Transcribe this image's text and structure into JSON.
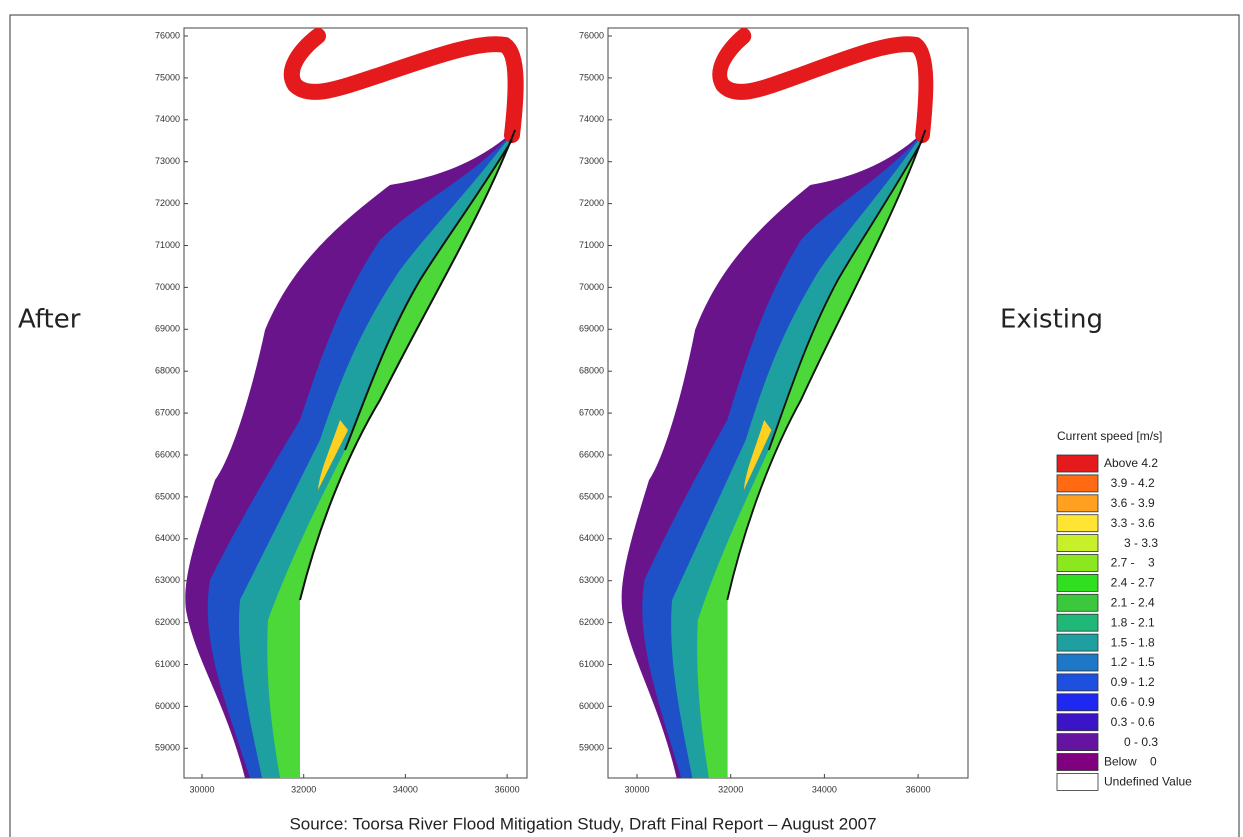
{
  "panels": [
    {
      "label": "After",
      "yticks": [
        "76000",
        "75000",
        "74000",
        "73000",
        "72000",
        "71000",
        "70000",
        "69000",
        "68000",
        "67000",
        "66000",
        "65000",
        "64000",
        "63000",
        "62000",
        "61000",
        "60000",
        "59000"
      ],
      "xticks": [
        "30000",
        "32000",
        "34000",
        "36000"
      ]
    },
    {
      "label": "Existing",
      "yticks": [
        "76000",
        "75000",
        "74000",
        "73000",
        "72000",
        "71000",
        "70000",
        "69000",
        "68000",
        "67000",
        "66000",
        "65000",
        "64000",
        "63000",
        "62000",
        "61000",
        "60000",
        "59000"
      ],
      "xticks": [
        "30000",
        "32000",
        "34000",
        "36000"
      ]
    }
  ],
  "legend": {
    "title": "Current speed [m/s]",
    "items": [
      {
        "label": "Above 4.2",
        "color": "#e41a1c"
      },
      {
        "label": "  3.9 - 4.2",
        "color": "#ff6a13"
      },
      {
        "label": "  3.6 - 3.9",
        "color": "#ffa020"
      },
      {
        "label": "  3.3 - 3.6",
        "color": "#ffe533"
      },
      {
        "label": "      3 - 3.3",
        "color": "#c8f02a"
      },
      {
        "label": "  2.7 -    3",
        "color": "#8ce81e"
      },
      {
        "label": "  2.4 - 2.7",
        "color": "#30e020"
      },
      {
        "label": "  2.1 - 2.4",
        "color": "#3cc83c"
      },
      {
        "label": "  1.8 - 2.1",
        "color": "#20b878"
      },
      {
        "label": "  1.5 - 1.8",
        "color": "#1ea0a0"
      },
      {
        "label": "  1.2 - 1.5",
        "color": "#1e78c8"
      },
      {
        "label": "  0.9 - 1.2",
        "color": "#1e50e0"
      },
      {
        "label": "  0.6 - 0.9",
        "color": "#1e28f0"
      },
      {
        "label": "  0.3 - 0.6",
        "color": "#3c14c8"
      },
      {
        "label": "      0 - 0.3",
        "color": "#6414a0"
      },
      {
        "label": "Below    0",
        "color": "#800080"
      },
      {
        "label": "Undefined Value",
        "color": "#ffffff"
      }
    ]
  },
  "source": "Source: Toorsa River Flood Mitigation Study, Draft Final Report – August 2007"
}
